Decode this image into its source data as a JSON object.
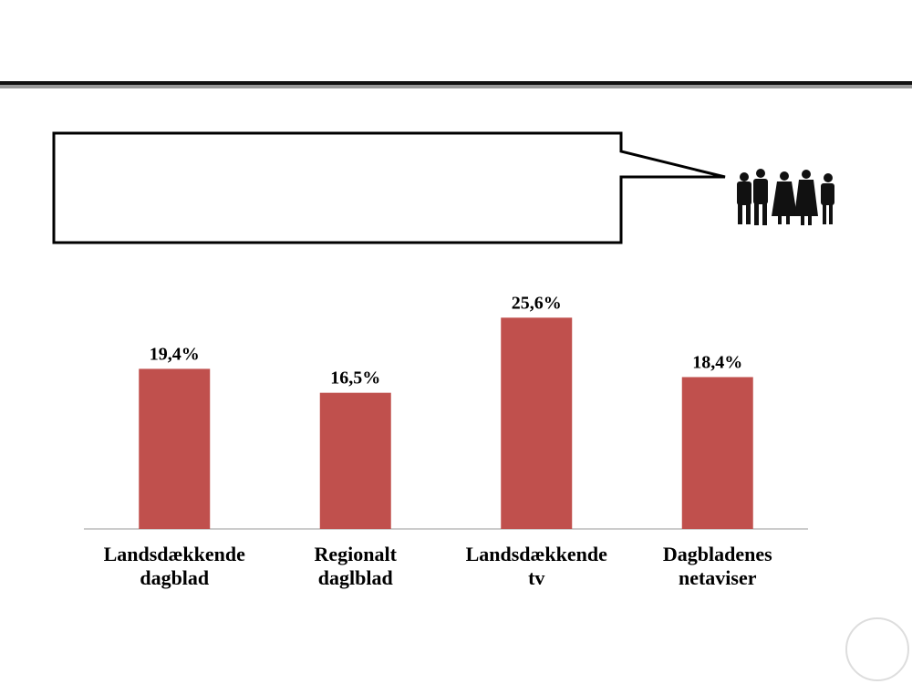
{
  "chart_data": {
    "type": "bar",
    "categories": [
      "Landsdækkende\ndagblad",
      "Regionalt\ndaglblad",
      "Landsdækkende\ntv",
      "Dagbladenes\nnetaviser"
    ],
    "values": [
      19.4,
      16.5,
      25.6,
      18.4
    ],
    "value_labels": [
      "19,4%",
      "16,5%",
      "25,6%",
      "18,4%"
    ],
    "color": "#c0504d"
  }
}
